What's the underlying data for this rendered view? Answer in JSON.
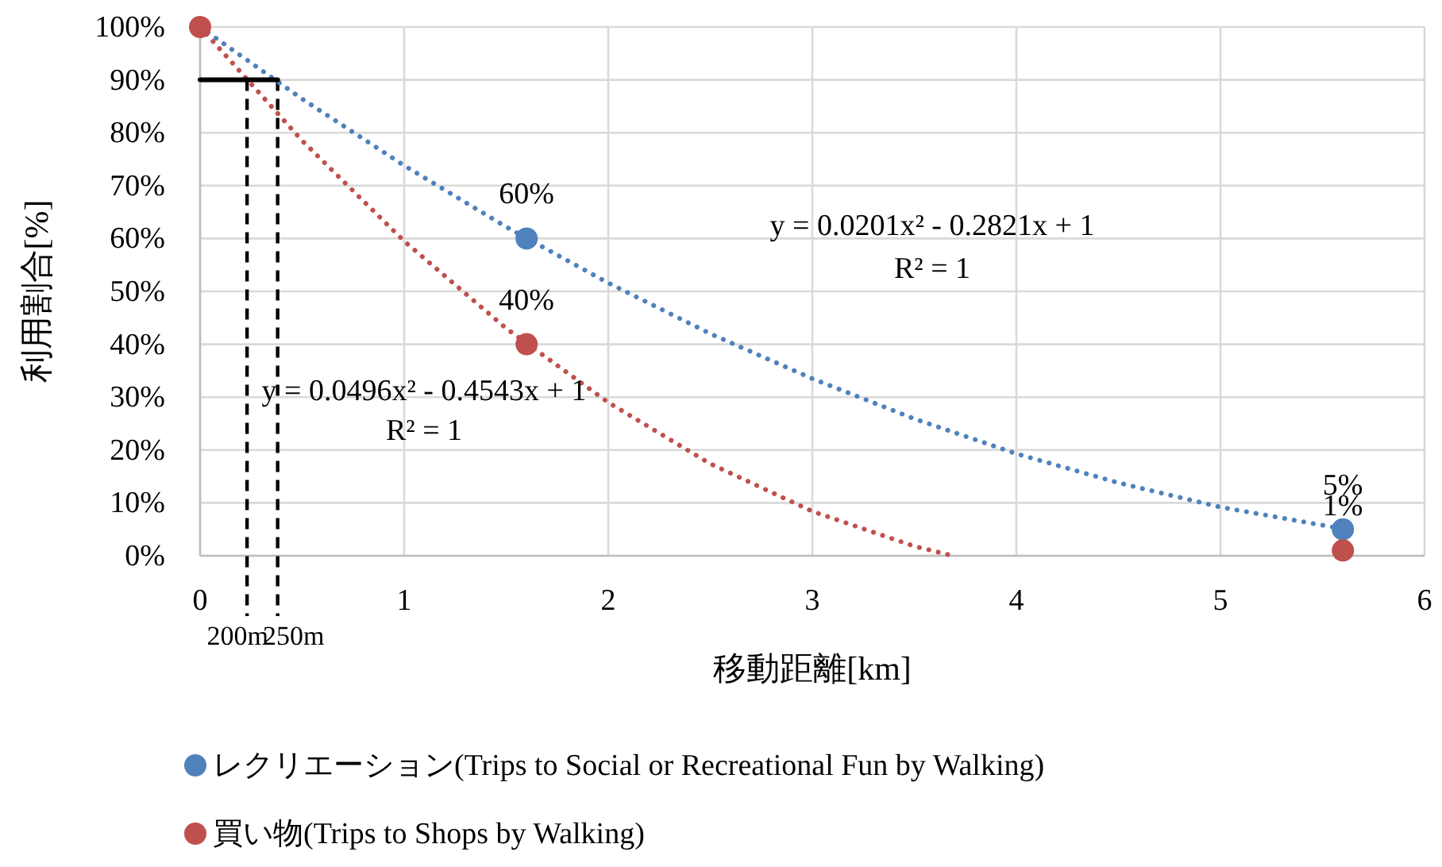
{
  "chart_data": {
    "type": "scatter",
    "xlabel": "移動距離[km]",
    "ylabel": "利用割合[%]",
    "xlim": [
      0,
      6
    ],
    "xticks": [
      0,
      1,
      2,
      3,
      4,
      5,
      6
    ],
    "ylim": [
      0,
      100
    ],
    "yticks": [
      {
        "value": 0,
        "label": "0%"
      },
      {
        "value": 10,
        "label": "10%"
      },
      {
        "value": 20,
        "label": "20%"
      },
      {
        "value": 30,
        "label": "30%"
      },
      {
        "value": 40,
        "label": "40%"
      },
      {
        "value": 50,
        "label": "50%"
      },
      {
        "value": 60,
        "label": "60%"
      },
      {
        "value": 70,
        "label": "70%"
      },
      {
        "value": 80,
        "label": "80%"
      },
      {
        "value": 90,
        "label": "90%"
      },
      {
        "value": 100,
        "label": "100%"
      }
    ],
    "grid": true,
    "legend": "bottom",
    "marker": "circle",
    "series": [
      {
        "type": "line",
        "color": "#4f81bd",
        "line_style": "dotted",
        "marker": "none",
        "x": [
          0,
          0.5,
          1,
          1.5,
          2,
          2.5,
          3,
          3.5,
          4,
          4.5,
          5,
          5.6
        ],
        "values": [
          100,
          86.4,
          73.8,
          62.2,
          51.6,
          42.0,
          33.5,
          25.9,
          19.3,
          13.8,
          9.2,
          5.1
        ]
      },
      {
        "type": "line",
        "color": "#c0504d",
        "line_style": "dotted",
        "marker": "none",
        "x": [
          0,
          0.5,
          1,
          1.5,
          2,
          2.5,
          3,
          3.5,
          3.69
        ],
        "values": [
          100,
          78.5,
          59.5,
          43.0,
          29.0,
          17.4,
          8.4,
          1.8,
          0
        ]
      },
      {
        "type": "line",
        "color": "#000000",
        "line_style": "solid",
        "marker": "none",
        "x": [
          0,
          0.38
        ],
        "values": [
          90,
          90
        ]
      },
      {
        "type": "scatter",
        "name": "レクリエーション(Trips to Social or Recreational Fun by Walking)",
        "color": "#4f81bd",
        "x": [
          1.6,
          5.6
        ],
        "values": [
          60,
          5
        ],
        "value_labels": [
          "60%",
          "5%"
        ]
      },
      {
        "type": "scatter",
        "name": "買い物(Trips to Shops by Walking)",
        "color": "#c0504d",
        "x": [
          0,
          1.6,
          5.6
        ],
        "values": [
          100,
          40,
          1
        ],
        "value_labels": [
          null,
          "40%",
          "1%"
        ]
      }
    ],
    "ref_lines": [
      {
        "axis": "x",
        "value": 0.23,
        "label": "200m",
        "color": "#000000",
        "line_style": "dashed"
      },
      {
        "axis": "x",
        "value": 0.38,
        "label": "250m",
        "color": "#000000",
        "line_style": "dashed"
      }
    ],
    "annotations": [
      "y = 0.0201x² - 0.2821x + 1",
      "R² = 1",
      "y = 0.0496x² - 0.4543x + 1",
      "R² = 1"
    ]
  }
}
